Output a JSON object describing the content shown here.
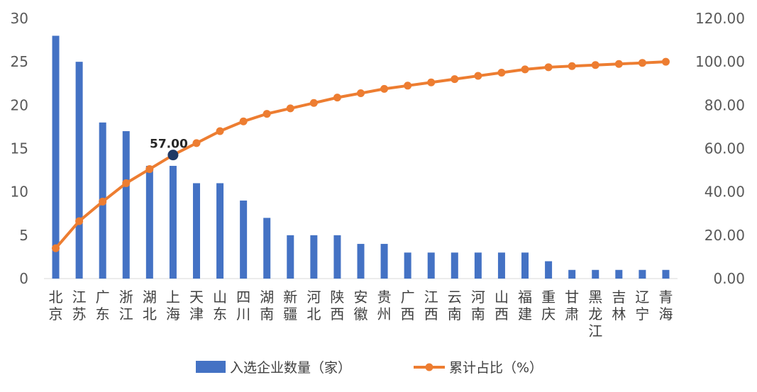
{
  "chart_data": {
    "type": "bar",
    "categories": [
      "北京",
      "江苏",
      "广东",
      "浙江",
      "湖北",
      "上海",
      "天津",
      "山东",
      "四川",
      "湖南",
      "新疆",
      "河北",
      "陕西",
      "安徽",
      "贵州",
      "广西",
      "江西",
      "云南",
      "河南",
      "山西",
      "福建",
      "重庆",
      "甘肃",
      "黑龙江",
      "吉林",
      "辽宁",
      "青海"
    ],
    "series": [
      {
        "name": "入选企业数量（家）",
        "type": "bar",
        "axis": "left",
        "color": "#4472C4",
        "values": [
          28,
          25,
          18,
          17,
          13,
          13,
          11,
          11,
          9,
          7,
          5,
          5,
          5,
          4,
          4,
          3,
          3,
          3,
          3,
          3,
          3,
          2,
          1,
          1,
          1,
          1,
          1
        ]
      },
      {
        "name": "累计占比（%）",
        "type": "line",
        "axis": "right",
        "color": "#ED7D31",
        "values": [
          14.0,
          26.5,
          35.5,
          44.0,
          50.5,
          57.0,
          62.5,
          68.0,
          72.5,
          76.0,
          78.5,
          81.0,
          83.5,
          85.5,
          87.5,
          89.0,
          90.5,
          92.0,
          93.5,
          95.0,
          96.5,
          97.5,
          98.0,
          98.5,
          99.0,
          99.5,
          100.0
        ]
      }
    ],
    "y_left": {
      "range": [
        0,
        30
      ],
      "ticks": [
        "0",
        "5",
        "10",
        "15",
        "20",
        "25",
        "30"
      ]
    },
    "y_right": {
      "range": [
        0,
        120
      ],
      "ticks": [
        "0.00",
        "20.00",
        "40.00",
        "60.00",
        "80.00",
        "100.00",
        "120.00"
      ]
    },
    "annotation": {
      "category": "上海",
      "series": "累计占比（%）",
      "value": 57.0,
      "label": "57.00",
      "marker_color": "#1F3864"
    },
    "grid": false,
    "legend_position": "bottom"
  }
}
